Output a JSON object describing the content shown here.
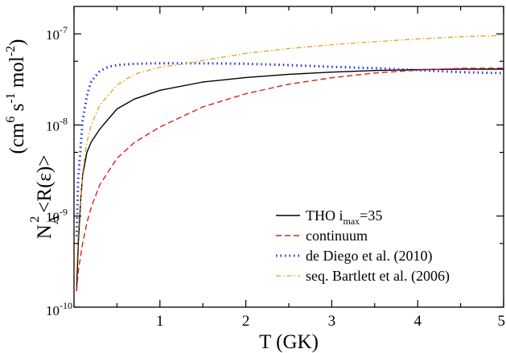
{
  "chart_data": {
    "type": "line",
    "xlabel": "T (GK)",
    "ylabel": {
      "line1_parts": [
        "N",
        "A",
        "2",
        "<R(ε)>"
      ],
      "line2_parts": [
        "(cm",
        "6",
        " s",
        "-1",
        " mol",
        "-2",
        ")"
      ]
    },
    "xlim": [
      0,
      5
    ],
    "ylim": [
      1e-10,
      2e-07
    ],
    "yscale": "log",
    "grid": false,
    "legend_placement": "bottom-right",
    "x_ticks": [
      {
        "value": 1,
        "label": "1"
      },
      {
        "value": 2,
        "label": "2"
      },
      {
        "value": 3,
        "label": "3"
      },
      {
        "value": 4,
        "label": "4"
      },
      {
        "value": 5,
        "label": "5"
      }
    ],
    "y_ticks": [
      {
        "value": 1e-10,
        "base": "10",
        "exp": "-10"
      },
      {
        "value": 1e-09,
        "base": "10",
        "exp": "-9"
      },
      {
        "value": 1e-08,
        "base": "10",
        "exp": "-8"
      },
      {
        "value": 1e-07,
        "base": "10",
        "exp": "-7"
      }
    ],
    "series": [
      {
        "name": "THO i_max=35",
        "legend_parts": [
          "THO i",
          "max",
          "=35"
        ],
        "color": "#000000",
        "dash": "",
        "width": 1.4,
        "x": [
          0.03,
          0.05,
          0.08,
          0.1,
          0.15,
          0.2,
          0.3,
          0.5,
          0.7,
          1.0,
          1.5,
          2.0,
          2.5,
          3.0,
          3.5,
          4.0,
          4.5,
          5.0
        ],
        "y": [
          1.5e-10,
          5e-10,
          1.6e-09,
          2.8e-09,
          5e-09,
          6.5e-09,
          9e-09,
          1.5e-08,
          1.92e-08,
          2.4e-08,
          2.96e-08,
          3.32e-08,
          3.6e-08,
          3.8e-08,
          3.96e-08,
          4.05e-08,
          4.1e-08,
          4.1e-08
        ]
      },
      {
        "name": "continuum",
        "legend_parts": [
          "continuum"
        ],
        "color": "#e11b1b",
        "dash": "7,4",
        "width": 1.4,
        "x": [
          0.03,
          0.05,
          0.1,
          0.15,
          0.2,
          0.3,
          0.5,
          0.7,
          1.0,
          1.5,
          2.0,
          2.5,
          3.0,
          3.5,
          4.0,
          4.5,
          5.0
        ],
        "y": [
          1.5e-10,
          2.5e-10,
          5e-10,
          8.4e-10,
          1.25e-09,
          2.2e-09,
          4.3e-09,
          6.4e-09,
          9.5e-09,
          1.58e-08,
          2.2e-08,
          2.8e-08,
          3.3e-08,
          3.72e-08,
          4e-08,
          4.18e-08,
          4.2e-08
        ]
      },
      {
        "name": "de Diego et al. (2010)",
        "legend_parts": [
          "de Diego et al. (2010)"
        ],
        "color": "#1e2fd6",
        "dash": "1.5,4",
        "width": 3,
        "x": [
          0.03,
          0.05,
          0.1,
          0.15,
          0.2,
          0.3,
          0.4,
          0.5,
          0.7,
          1.0,
          1.5,
          2.0,
          2.5,
          3.0,
          3.5,
          4.0,
          4.5,
          5.0
        ],
        "y": [
          6e-10,
          2.6e-09,
          1.1e-08,
          2.1e-08,
          3e-08,
          3.9e-08,
          4.35e-08,
          4.55e-08,
          4.7e-08,
          4.75e-08,
          4.75e-08,
          4.7e-08,
          4.55e-08,
          4.35e-08,
          4.2e-08,
          4e-08,
          3.8e-08,
          3.7e-08
        ]
      },
      {
        "name": "seq. Bartlett et al. (2006)",
        "legend_parts": [
          "seq. Bartlett et al. (2006)"
        ],
        "color": "#e3a21a",
        "dash": "6,3,1.5,3",
        "width": 1.3,
        "x": [
          0.03,
          0.05,
          0.1,
          0.15,
          0.2,
          0.3,
          0.5,
          0.7,
          1.0,
          1.3,
          1.5,
          2.0,
          2.5,
          3.0,
          3.5,
          4.0,
          4.5,
          5.0
        ],
        "y": [
          2.5e-10,
          7e-10,
          3e-09,
          6.5e-09,
          1e-08,
          1.65e-08,
          2.75e-08,
          3.6e-08,
          4.3e-08,
          4.7e-08,
          5.1e-08,
          6.1e-08,
          6.9e-08,
          7.6e-08,
          8.2e-08,
          8.8e-08,
          9.3e-08,
          9.6e-08
        ]
      }
    ]
  }
}
